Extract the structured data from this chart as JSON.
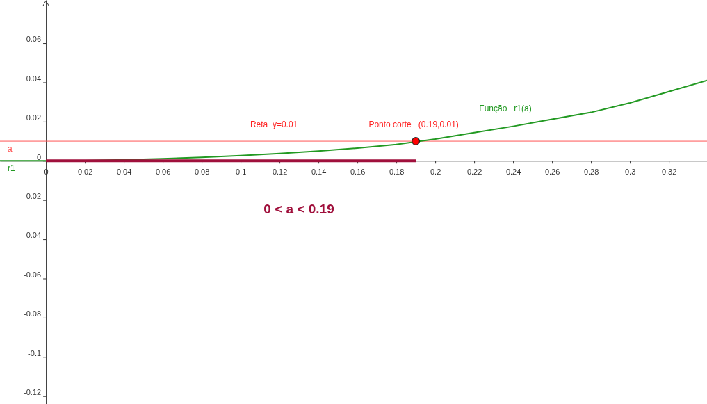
{
  "chart_data": {
    "type": "line",
    "xlim": [
      -0.0236,
      0.3396
    ],
    "ylim": [
      -0.124,
      0.082
    ],
    "xticks": [
      0,
      0.02,
      0.04,
      0.06,
      0.08,
      0.1,
      0.12,
      0.14,
      0.16,
      0.18,
      0.2,
      0.22,
      0.24,
      0.26,
      0.28,
      0.3,
      0.32
    ],
    "yticks": [
      -0.12,
      -0.1,
      -0.08,
      -0.06,
      -0.04,
      -0.02,
      0,
      0.02,
      0.04,
      0.06
    ],
    "grid": false,
    "marker": "none",
    "line_style": "solid",
    "series": [
      {
        "name": "r1",
        "color": "#229922",
        "x": [
          -0.0236,
          0,
          0.02,
          0.04,
          0.06,
          0.08,
          0.1,
          0.12,
          0.14,
          0.16,
          0.18,
          0.2,
          0.22,
          0.24,
          0.26,
          0.28,
          0.3,
          0.32,
          0.3396
        ],
        "values": [
          0,
          0,
          0.0001,
          0.0005,
          0.0011,
          0.0018,
          0.0027,
          0.0037,
          0.005,
          0.0065,
          0.0083,
          0.0111,
          0.0144,
          0.0176,
          0.0212,
          0.0247,
          0.0295,
          0.0353,
          0.041
        ]
      },
      {
        "type": "line",
        "color": "#a0103c",
        "x": [
          0,
          0.19
        ],
        "values": [
          0,
          0
        ]
      },
      {
        "type": "scatter",
        "marker": "circle",
        "color": "#ff0000",
        "x": [
          0.19
        ],
        "values": [
          0.01
        ]
      }
    ],
    "ref_lines": [
      {
        "axis": "y",
        "value": 0.01,
        "label": "a",
        "color": "#ff5555"
      }
    ],
    "annotations": [
      {
        "text": "Reta  y=0.01",
        "x": 0.12,
        "y": 0.01
      },
      {
        "text": "Ponto corte   (0.19,0.01)",
        "x": 0.19,
        "y": 0.01
      },
      "Função   r1(a)",
      "0 < a < 0.19"
    ]
  }
}
